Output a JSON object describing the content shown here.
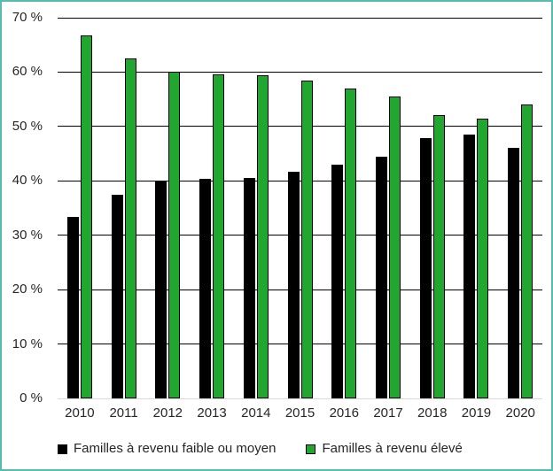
{
  "chart_data": {
    "type": "bar",
    "title": "",
    "xlabel": "",
    "ylabel": "",
    "categories": [
      "2010",
      "2011",
      "2012",
      "2013",
      "2014",
      "2015",
      "2016",
      "2017",
      "2018",
      "2019",
      "2020"
    ],
    "series": [
      {
        "name": "Familles à revenu faible ou moyen",
        "color": "#000000",
        "values": [
          33.3,
          37.5,
          40.0,
          40.4,
          40.6,
          41.6,
          43.0,
          44.5,
          47.9,
          48.5,
          46.0
        ]
      },
      {
        "name": "Familles à revenu élevé",
        "color": "#21A72F",
        "values": [
          66.7,
          62.5,
          60.0,
          59.6,
          59.4,
          58.4,
          57.0,
          55.5,
          52.1,
          51.5,
          54.0
        ]
      }
    ],
    "ylim": [
      0,
      70
    ],
    "yticks": [
      {
        "value": 70,
        "label": "70 %"
      },
      {
        "value": 60,
        "label": "60 %"
      },
      {
        "value": 50,
        "label": "50 %"
      },
      {
        "value": 40,
        "label": "40 %"
      },
      {
        "value": 30,
        "label": "30 %"
      },
      {
        "value": 20,
        "label": "20 %"
      },
      {
        "value": 10,
        "label": "10 %"
      },
      {
        "value": 0,
        "label": "0 %"
      }
    ],
    "grid": true,
    "gridline_color": "#000000",
    "axis_line_color": "#D9D9D9",
    "legend_position": "bottom"
  },
  "colors": {
    "frame_border": "#55BCAE",
    "background": "#FFFFFF",
    "text": "#262626"
  }
}
